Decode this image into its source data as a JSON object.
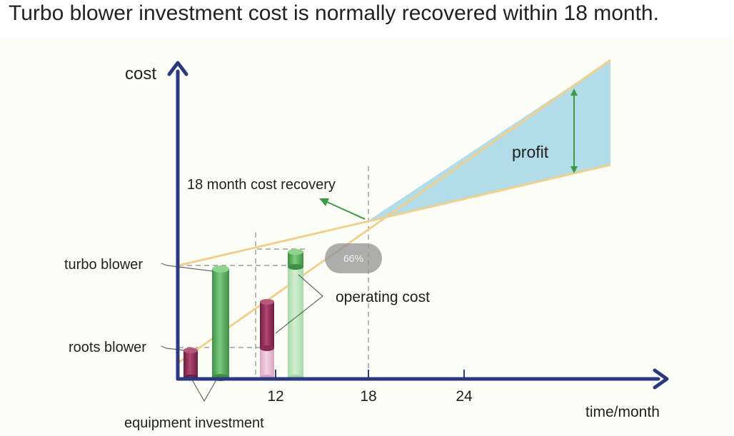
{
  "title": "Turbo blower investment cost is normally recovered within 18 month.",
  "zoom_badge": "66%",
  "colors": {
    "axis": "#2b3980",
    "cost_line": "#f1d08e",
    "profit_fill": "#a9d8e6",
    "turbo": "#55a85a",
    "roots": "#8c2a55",
    "arrow": "#3c9a44"
  },
  "diagram": {
    "y_axis_label": "cost",
    "x_axis_label": "time/month",
    "x_ticks": [
      "12",
      "18",
      "24"
    ],
    "labels": {
      "turbo_blower": "turbo blower",
      "roots_blower": "roots blower",
      "equipment_investment": "equipment investment",
      "operating_cost": "operating cost",
      "cost_recovery": "18 month cost recovery",
      "profit": "profit"
    }
  }
}
